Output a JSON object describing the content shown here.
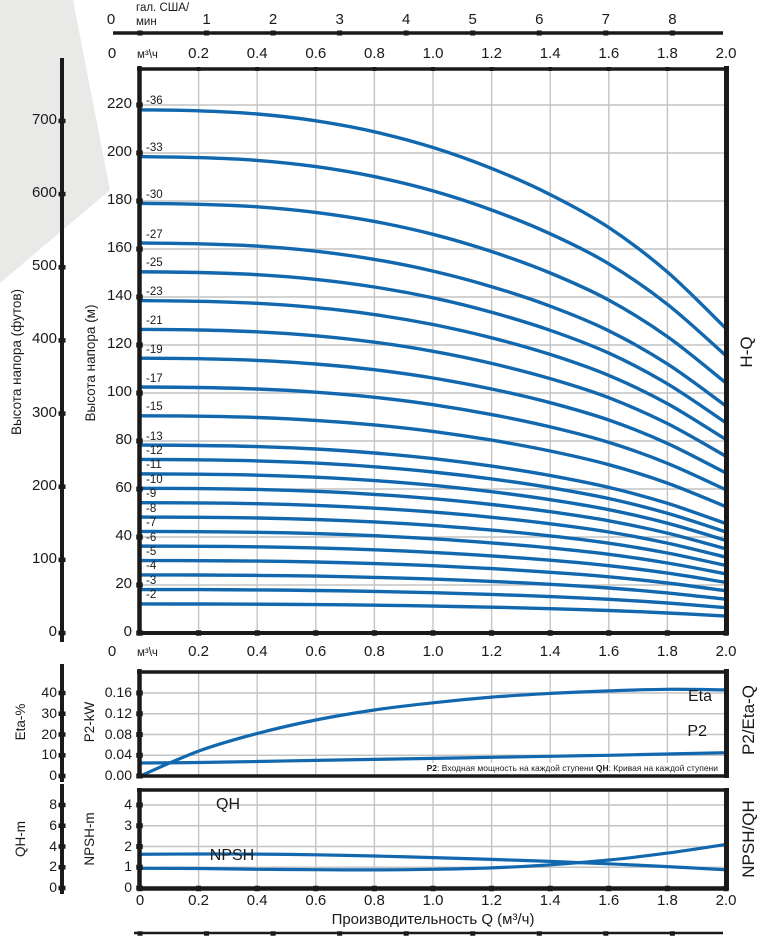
{
  "colors": {
    "curve_blue": "#1168ae",
    "axis_black": "#1a1a1a",
    "grid_gray": "#c4c4c4",
    "wedge_gray": "#e9e9e8",
    "note_bg": "#ffffff"
  },
  "x_axis_shared": {
    "unit": "м³\\ч",
    "ticks": [
      "0",
      "0.2",
      "0.4",
      "0.6",
      "0.8",
      "1.0",
      "1.2",
      "1.4",
      "1.6",
      "1.8",
      "2.0"
    ],
    "range": [
      0,
      2.0
    ]
  },
  "gal_axis": {
    "unit_line1": "гал. США/",
    "unit_line2": "мин",
    "ticks": [
      "0",
      "1",
      "2",
      "3",
      "4",
      "5",
      "6",
      "7",
      "8"
    ],
    "m3h_per_gal_min": 0.22712
  },
  "bottom_axis_label": "Производительность Q (м³/ч)",
  "chart_data": [
    {
      "type": "line",
      "name": "head-flow-curves",
      "right_label": "H-Q",
      "x_unit": "м³/ч",
      "x_range": [
        0,
        2.0
      ],
      "y_axis_m": {
        "label": "Высота напора (м)",
        "ticks": [
          0,
          20,
          40,
          60,
          80,
          100,
          120,
          140,
          160,
          180,
          200,
          220
        ],
        "max": 235
      },
      "y_axis_feet": {
        "label": "Высота напора (футов)",
        "ticks": [
          0,
          100,
          200,
          300,
          400,
          500,
          600,
          700
        ]
      },
      "q_values": [
        0,
        0.2,
        0.4,
        0.6,
        0.8,
        1.0,
        1.2,
        1.4,
        1.6,
        1.8,
        2.0
      ],
      "head_ratio_vs_q": [
        1.0,
        0.998,
        0.992,
        0.979,
        0.958,
        0.928,
        0.888,
        0.838,
        0.775,
        0.69,
        0.582
      ],
      "series_note": "head_m(q) = h0_m × head_ratio_vs_q",
      "series": [
        {
          "label": "-36",
          "h0_m": 218.0
        },
        {
          "label": "-33",
          "h0_m": 198.5
        },
        {
          "label": "-30",
          "h0_m": 179.0
        },
        {
          "label": "-27",
          "h0_m": 162.5
        },
        {
          "label": "-25",
          "h0_m": 150.5
        },
        {
          "label": "-23",
          "h0_m": 138.5
        },
        {
          "label": "-21",
          "h0_m": 126.5
        },
        {
          "label": "-19",
          "h0_m": 114.5
        },
        {
          "label": "-17",
          "h0_m": 102.5
        },
        {
          "label": "-15",
          "h0_m": 90.5
        },
        {
          "label": "-13",
          "h0_m": 78.3
        },
        {
          "label": "-12",
          "h0_m": 72.3
        },
        {
          "label": "-11",
          "h0_m": 66.3
        },
        {
          "label": "-10",
          "h0_m": 60.3
        },
        {
          "label": "-9",
          "h0_m": 54.3
        },
        {
          "label": "-8",
          "h0_m": 48.3
        },
        {
          "label": "-7",
          "h0_m": 42.3
        },
        {
          "label": "-6",
          "h0_m": 36.2
        },
        {
          "label": "-5",
          "h0_m": 30.2
        },
        {
          "label": "-4",
          "h0_m": 24.2
        },
        {
          "label": "-3",
          "h0_m": 18.1
        },
        {
          "label": "-2",
          "h0_m": 12.1
        }
      ]
    },
    {
      "type": "line",
      "name": "power-efficiency-curves",
      "right_label": "P2/Eta-Q",
      "eta_axis": {
        "label": "Eta-%",
        "ticks": [
          0,
          10,
          20,
          30,
          40
        ],
        "axis_top_maps_to_p2_kw": 0.16
      },
      "p2_axis": {
        "label": "P2-kW",
        "ticks": [
          "0.00",
          "0.04",
          "0.08",
          "0.12",
          "0.16"
        ]
      },
      "x": [
        0,
        0.2,
        0.4,
        0.6,
        0.8,
        1.0,
        1.2,
        1.4,
        1.6,
        1.8,
        2.0
      ],
      "series": [
        {
          "name": "Eta",
          "unit": "%",
          "values": [
            0,
            12,
            20.5,
            27,
            31.8,
            35.3,
            38,
            39.8,
            41,
            41.8,
            41.5
          ]
        },
        {
          "name": "P2",
          "unit": "kW",
          "values": [
            0.025,
            0.026,
            0.028,
            0.03,
            0.032,
            0.034,
            0.036,
            0.038,
            0.04,
            0.0425,
            0.045
          ]
        }
      ],
      "note_parts": [
        {
          "bold": "P2",
          "text": ": Входная мощность на каждой ступени "
        },
        {
          "bold": "QH",
          "text": ": Кривая на каждой ступени"
        }
      ]
    },
    {
      "type": "line",
      "name": "npsh-qh-curves",
      "right_label": "NPSH/QH",
      "qh_axis": {
        "label": "QH-m",
        "ticks": [
          0,
          2,
          4,
          6,
          8
        ],
        "axis_top_maps_to_npsh_m": 4
      },
      "npsh_axis": {
        "label": "NPSH-m",
        "ticks": [
          0,
          1,
          2,
          3,
          4
        ]
      },
      "x": [
        0,
        0.2,
        0.4,
        0.6,
        0.8,
        1.0,
        1.2,
        1.4,
        1.6,
        1.8,
        2.0
      ],
      "series": [
        {
          "name": "QH",
          "unit": "m",
          "values": [
            3.25,
            3.28,
            3.27,
            3.2,
            3.08,
            2.93,
            2.76,
            2.56,
            2.33,
            2.06,
            1.75
          ]
        },
        {
          "name": "NPSH",
          "unit": "m",
          "values": [
            0.95,
            0.94,
            0.9,
            0.88,
            0.87,
            0.9,
            0.97,
            1.12,
            1.35,
            1.68,
            2.1
          ]
        }
      ]
    }
  ]
}
